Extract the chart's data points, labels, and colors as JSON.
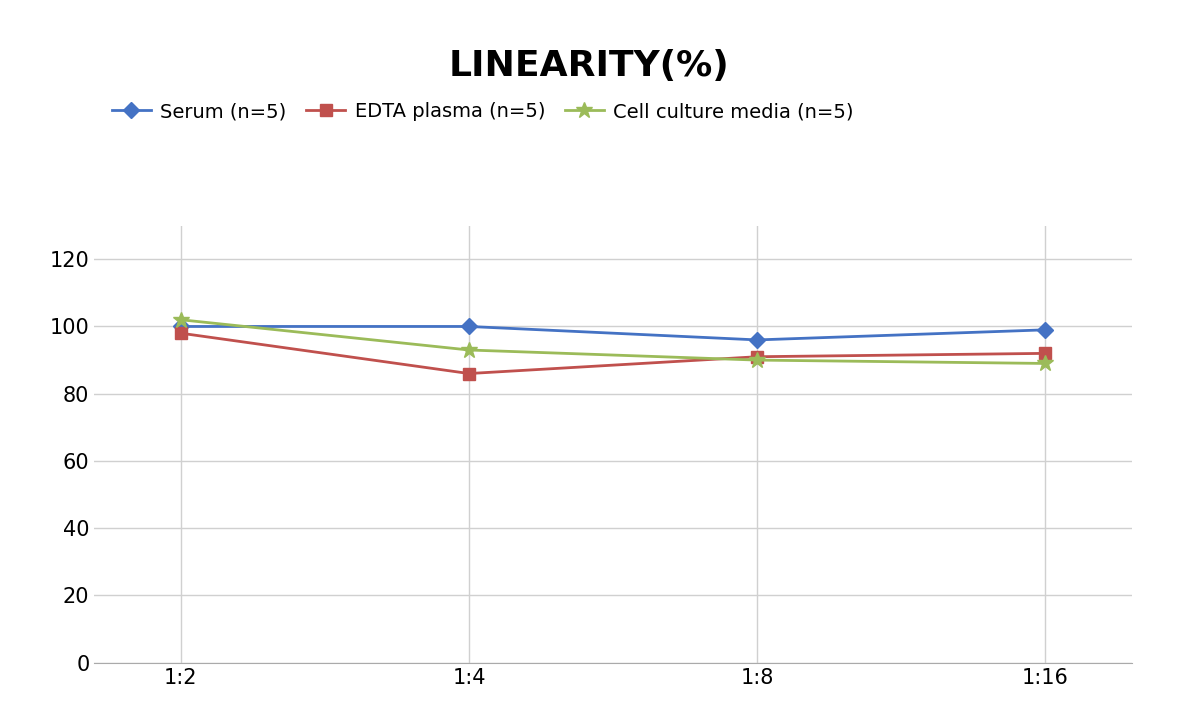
{
  "title": "LINEARITY(%)",
  "x_labels": [
    "1:2",
    "1:4",
    "1:8",
    "1:16"
  ],
  "x_positions": [
    0,
    1,
    2,
    3
  ],
  "series": [
    {
      "label": "Serum (n=5)",
      "values": [
        100,
        100,
        96,
        99
      ],
      "color": "#4472C4",
      "marker": "D",
      "marker_size": 8,
      "linewidth": 2.0
    },
    {
      "label": "EDTA plasma (n=5)",
      "values": [
        98,
        86,
        91,
        92
      ],
      "color": "#C0504D",
      "marker": "s",
      "marker_size": 8,
      "linewidth": 2.0
    },
    {
      "label": "Cell culture media (n=5)",
      "values": [
        102,
        93,
        90,
        89
      ],
      "color": "#9BBB59",
      "marker": "*",
      "marker_size": 12,
      "linewidth": 2.0
    }
  ],
  "ylim": [
    0,
    130
  ],
  "yticks": [
    0,
    20,
    40,
    60,
    80,
    100,
    120
  ],
  "background_color": "#ffffff",
  "grid_color": "#d0d0d0",
  "title_fontsize": 26,
  "tick_fontsize": 15,
  "legend_fontsize": 14
}
